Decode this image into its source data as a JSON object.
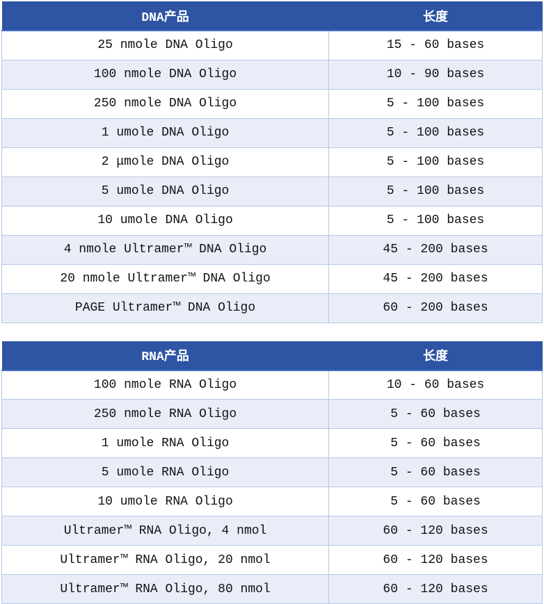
{
  "colors": {
    "header_bg": "#2e54a4",
    "header_text": "#ffffff",
    "header_bottom_border": "#4472c4",
    "row_alt_bg": "#eaedf8",
    "row_bg": "#ffffff",
    "grid_border": "#b4c7e7",
    "body_text": "#111111"
  },
  "tables": [
    {
      "id": "dna-products",
      "header": {
        "product": "DNA产品",
        "length": "长度"
      },
      "rows": [
        [
          "25 nmole DNA Oligo",
          "15 - 60 bases"
        ],
        [
          "100 nmole DNA Oligo",
          "10 - 90 bases"
        ],
        [
          "250 nmole DNA Oligo",
          "5 - 100 bases"
        ],
        [
          "1 umole DNA Oligo",
          "5 - 100 bases"
        ],
        [
          "2 μmole DNA Oligo",
          "5 - 100 bases"
        ],
        [
          "5 umole DNA Oligo",
          "5 - 100 bases"
        ],
        [
          "10 umole DNA Oligo",
          "5 - 100 bases"
        ],
        [
          "4 nmole Ultramer™ DNA Oligo",
          "45 - 200 bases"
        ],
        [
          "20 nmole Ultramer™ DNA Oligo",
          "45 - 200 bases"
        ],
        [
          "PAGE Ultramer™ DNA Oligo",
          "60 - 200 bases"
        ]
      ]
    },
    {
      "id": "rna-products",
      "header": {
        "product": "RNA产品",
        "length": "长度"
      },
      "rows": [
        [
          "100 nmole RNA Oligo",
          "10 - 60 bases"
        ],
        [
          "250 nmole RNA Oligo",
          "5 - 60 bases"
        ],
        [
          "1 umole RNA Oligo",
          "5 - 60 bases"
        ],
        [
          "5 umole RNA Oligo",
          "5 - 60 bases"
        ],
        [
          "10 umole RNA Oligo",
          "5 - 60 bases"
        ],
        [
          "Ultramer™ RNA Oligo, 4 nmol",
          "60 - 120 bases"
        ],
        [
          "Ultramer™ RNA Oligo, 20 nmol",
          "60 - 120 bases"
        ],
        [
          "Ultramer™ RNA Oligo, 80 nmol",
          "60 - 120 bases"
        ]
      ]
    }
  ]
}
